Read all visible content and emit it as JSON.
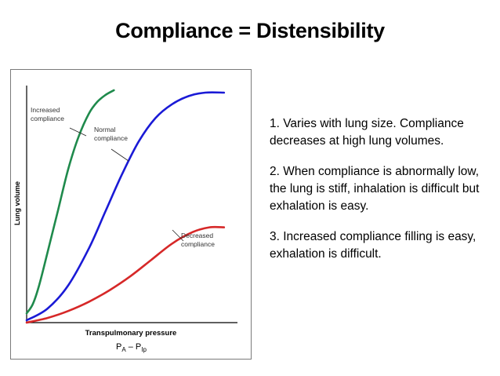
{
  "slide": {
    "title": "Compliance = Distensibility"
  },
  "notes": [
    "1. Varies with lung size. Compliance decreases at high lung volumes.",
    "2. When compliance is abnormally low, the lung is stiff, inhalation is difficult but exhalation is easy.",
    "3. Increased compliance filling is easy, exhalation is difficult."
  ],
  "chart_data": {
    "type": "line",
    "title": "",
    "xlabel": "Transpulmonary pressure",
    "xlabel_formula": {
      "a": "P",
      "a_sub": "A",
      "minus": " – ",
      "b": "P",
      "b_sub": "Ip"
    },
    "ylabel": "Lung volume",
    "xlim": [
      0,
      1
    ],
    "ylim": [
      0,
      1
    ],
    "grid": false,
    "series": [
      {
        "name": "Increased\ncompliance",
        "color": "#1f8a4c",
        "x": [
          0,
          0.03,
          0.06,
          0.1,
          0.15,
          0.2,
          0.25,
          0.3,
          0.34,
          0.38,
          0.42
        ],
        "y": [
          0.04,
          0.08,
          0.16,
          0.3,
          0.48,
          0.66,
          0.8,
          0.9,
          0.95,
          0.98,
          1.0
        ]
      },
      {
        "name": "Normal\ncompliance",
        "color": "#1a1ad6",
        "x": [
          0,
          0.1,
          0.2,
          0.3,
          0.38,
          0.46,
          0.54,
          0.62,
          0.7,
          0.78,
          0.86,
          0.95
        ],
        "y": [
          0.01,
          0.06,
          0.16,
          0.32,
          0.48,
          0.64,
          0.78,
          0.88,
          0.94,
          0.975,
          0.99,
          0.99
        ]
      },
      {
        "name": "Decreased\ncompliance",
        "color": "#d62828",
        "x": [
          0,
          0.1,
          0.2,
          0.3,
          0.4,
          0.5,
          0.6,
          0.7,
          0.8,
          0.88,
          0.95
        ],
        "y": [
          0.0,
          0.02,
          0.05,
          0.09,
          0.14,
          0.2,
          0.27,
          0.34,
          0.39,
          0.41,
          0.41
        ]
      }
    ]
  }
}
